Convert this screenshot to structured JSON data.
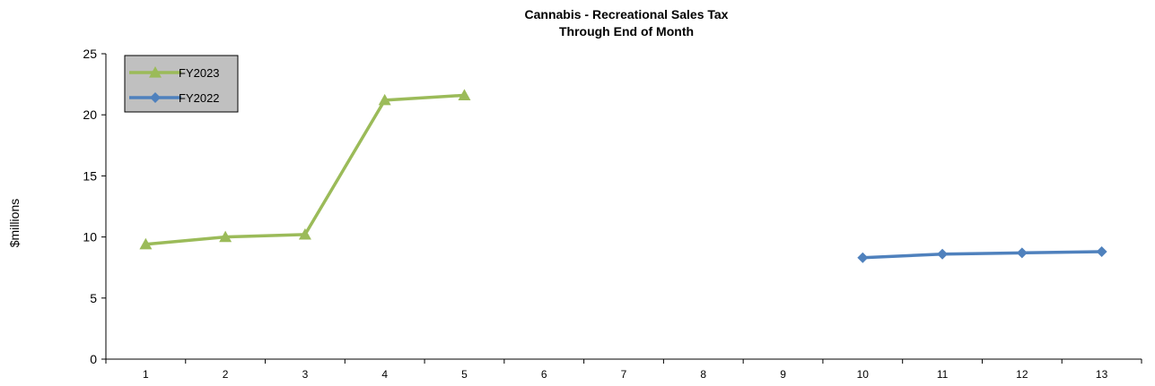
{
  "chart_data": {
    "type": "line",
    "title": "Cannabis - Recreational Sales Tax",
    "subtitle": "Through End of Month",
    "xlabel": "",
    "ylabel": "$millions",
    "ylim": [
      0,
      25
    ],
    "yticks": [
      0,
      5,
      10,
      15,
      20,
      25
    ],
    "categories": [
      "1",
      "2",
      "3",
      "4",
      "5",
      "6",
      "7",
      "8",
      "9",
      "10",
      "11",
      "12",
      "13"
    ],
    "grid": false,
    "legend_position": "top-left",
    "legend_background": "#c0c0c0",
    "series": [
      {
        "name": "FY2023",
        "color": "#9bbb59",
        "marker": "triangle",
        "x": [
          1,
          2,
          3,
          4,
          5
        ],
        "values": [
          9.4,
          10.0,
          10.2,
          21.2,
          21.6
        ]
      },
      {
        "name": "FY2022",
        "color": "#4f81bd",
        "marker": "diamond",
        "x": [
          10,
          11,
          12,
          13
        ],
        "values": [
          8.3,
          8.6,
          8.7,
          8.8
        ]
      }
    ]
  }
}
